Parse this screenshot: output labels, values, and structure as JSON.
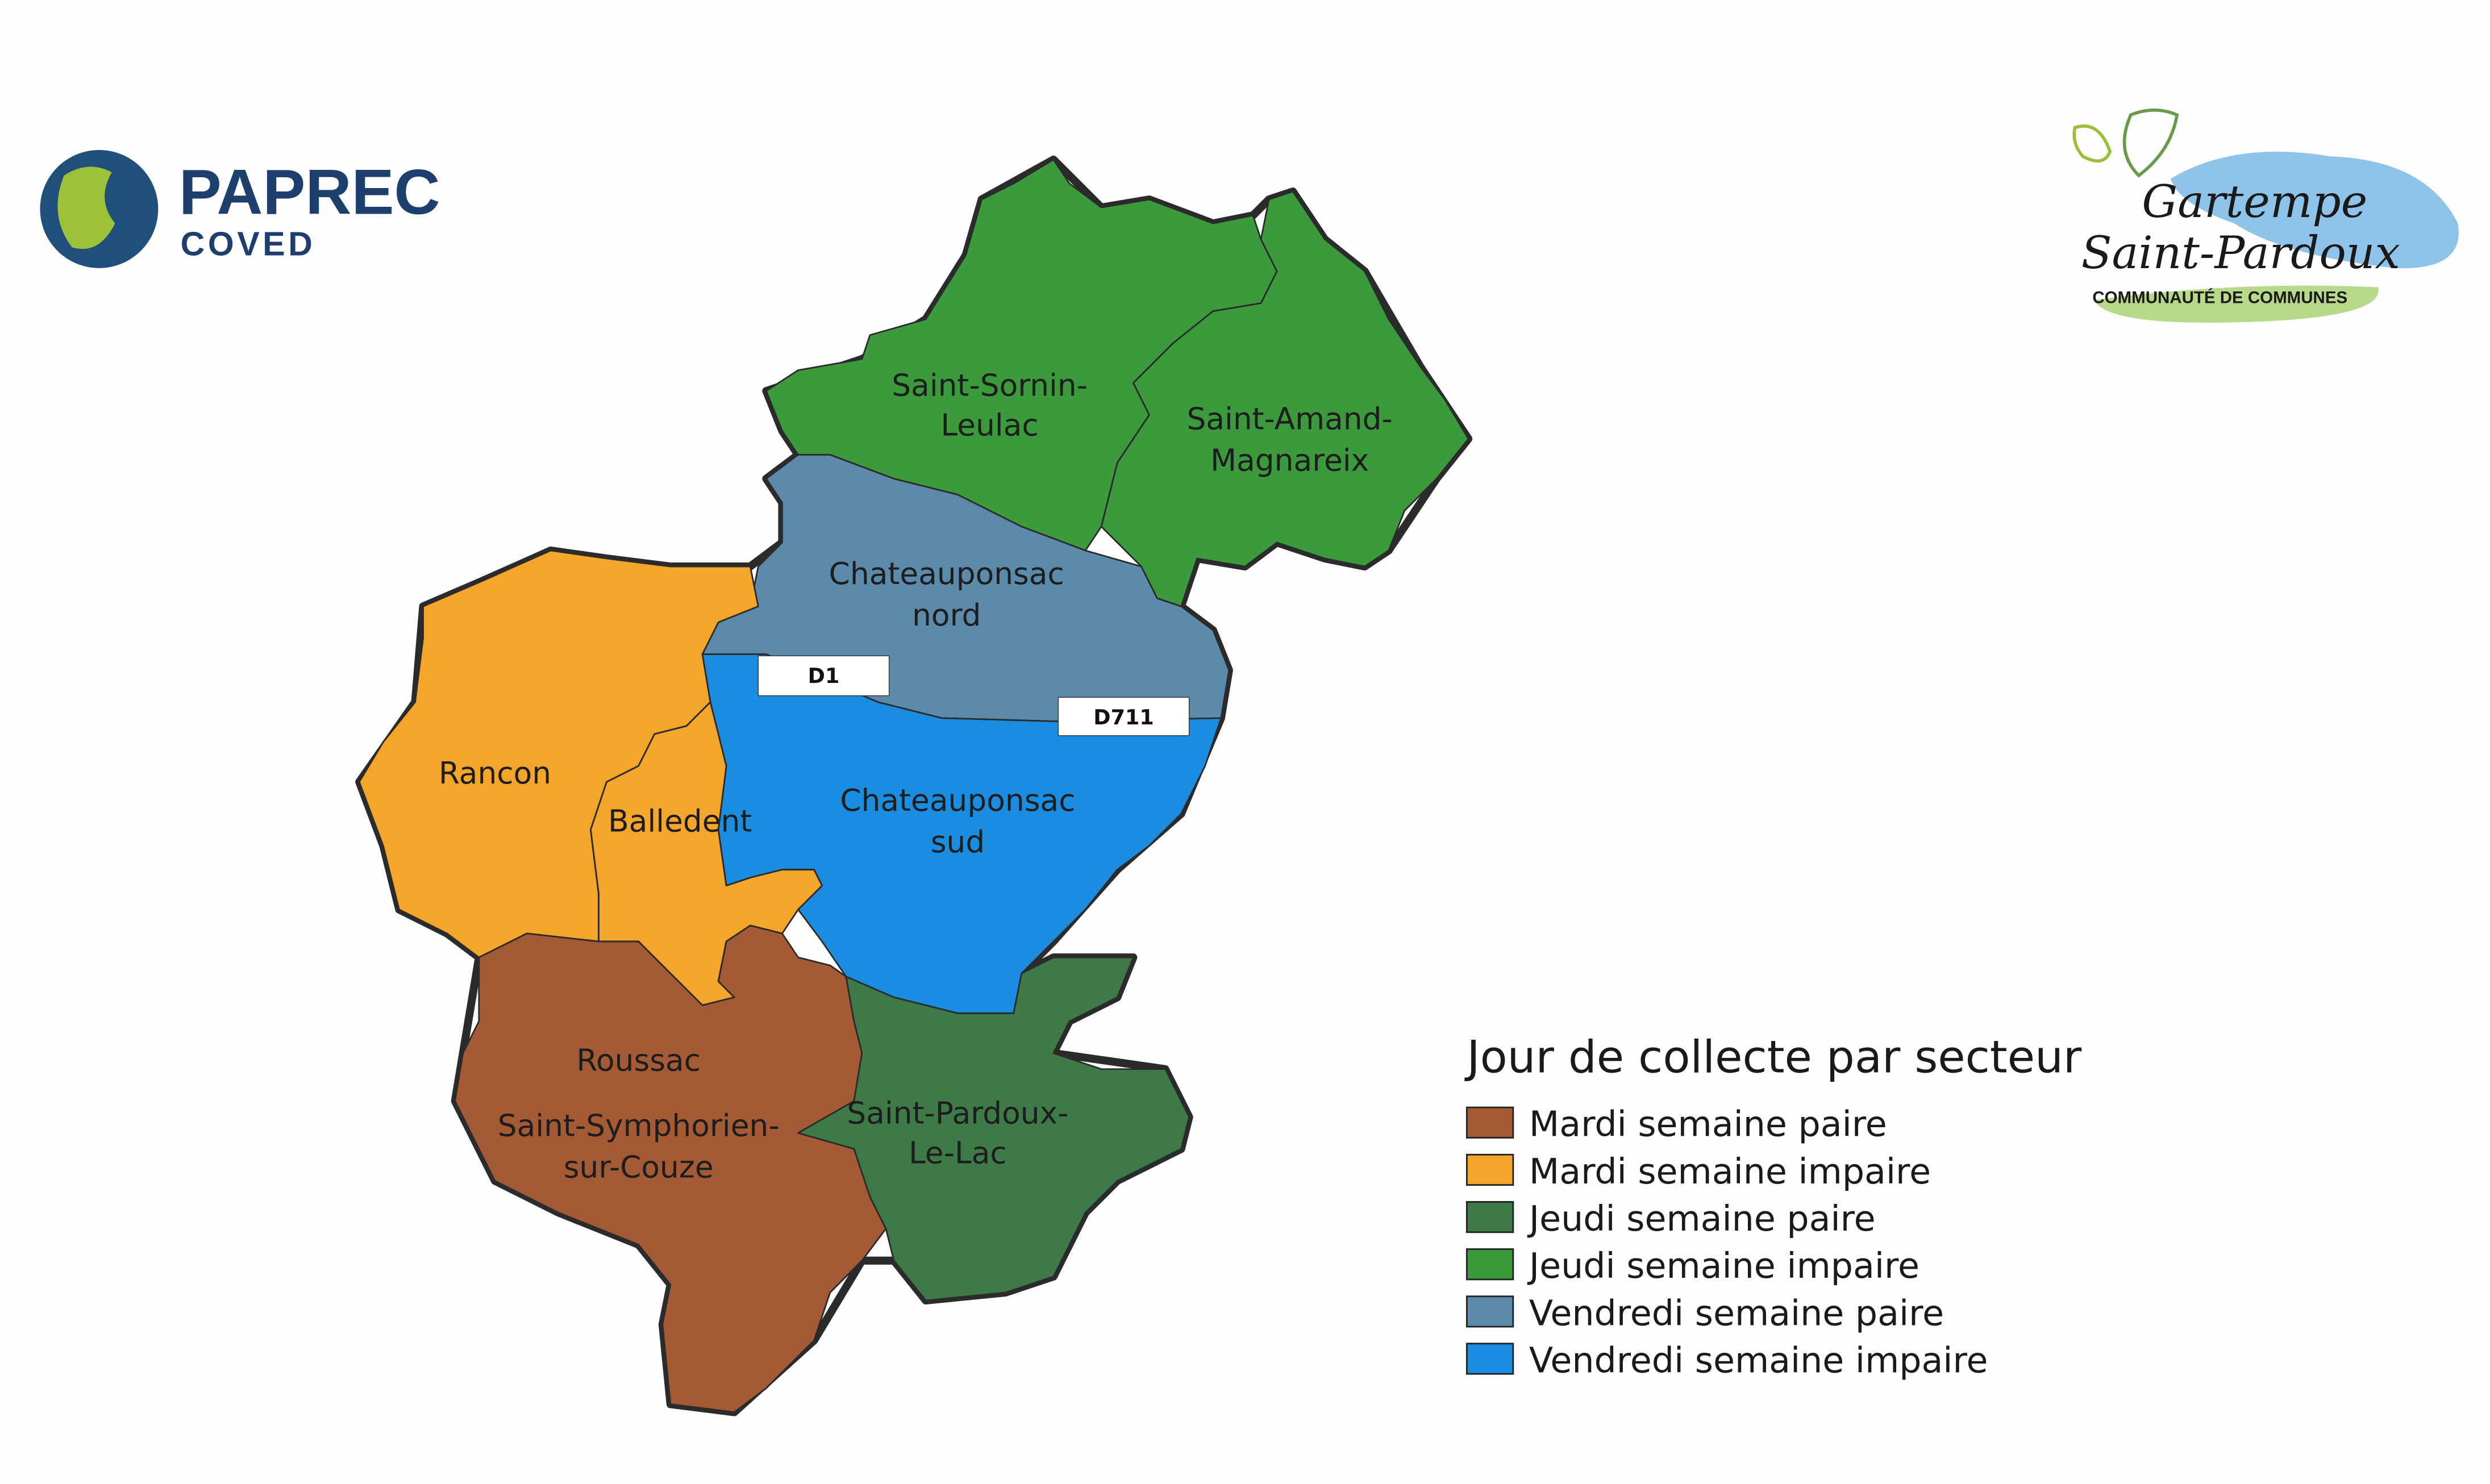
{
  "logos": {
    "paprec": {
      "name": "PAPREC",
      "sub": "COVED",
      "color": "#1d3f6e"
    },
    "gartempe": {
      "line1": "Gartempe",
      "line2": "Saint-Pardoux",
      "sub": "COMMUNAUTÉ DE COMMUNES"
    }
  },
  "colors": {
    "mardi_paire": "#a35a35",
    "mardi_impaire": "#f4a62a",
    "jeudi_paire": "#3e7a48",
    "jeudi_impaire": "#3a9a3c",
    "vendredi_paire": "#5b8aab",
    "vendredi_impaire": "#1b8de0"
  },
  "map": {
    "sectors": [
      {
        "id": "saint-sornin-leulac",
        "lines": [
          "Saint-Sornin-",
          "Leulac"
        ],
        "category": "jeudi_impaire"
      },
      {
        "id": "saint-amand-magnareix",
        "lines": [
          "Saint-Amand-",
          "Magnareix"
        ],
        "category": "jeudi_impaire"
      },
      {
        "id": "chateauponsac-nord",
        "lines": [
          "Chateauponsac",
          "nord"
        ],
        "category": "vendredi_paire"
      },
      {
        "id": "chateauponsac-sud",
        "lines": [
          "Chateauponsac",
          "sud"
        ],
        "category": "vendredi_impaire"
      },
      {
        "id": "rancon",
        "lines": [
          "Rancon"
        ],
        "category": "mardi_impaire"
      },
      {
        "id": "balledent",
        "lines": [
          "Balledent"
        ],
        "category": "mardi_impaire"
      },
      {
        "id": "roussac-saint-symphorien",
        "lines": [
          "Roussac",
          "Saint-Symphorien-",
          "sur-Couze"
        ],
        "category": "mardi_paire"
      },
      {
        "id": "saint-pardoux-le-lac",
        "lines": [
          "Saint-Pardoux-",
          "Le-Lac"
        ],
        "category": "jeudi_paire"
      }
    ],
    "roads": [
      "D1",
      "D711"
    ]
  },
  "legend": {
    "title": "Jour de collecte par secteur",
    "items": [
      {
        "label": "Mardi semaine paire",
        "key": "mardi_paire"
      },
      {
        "label": "Mardi semaine impaire",
        "key": "mardi_impaire"
      },
      {
        "label": "Jeudi semaine paire",
        "key": "jeudi_paire"
      },
      {
        "label": "Jeudi semaine impaire",
        "key": "jeudi_impaire"
      },
      {
        "label": "Vendredi semaine paire",
        "key": "vendredi_paire"
      },
      {
        "label": "Vendredi semaine impaire",
        "key": "vendredi_impaire"
      }
    ]
  }
}
